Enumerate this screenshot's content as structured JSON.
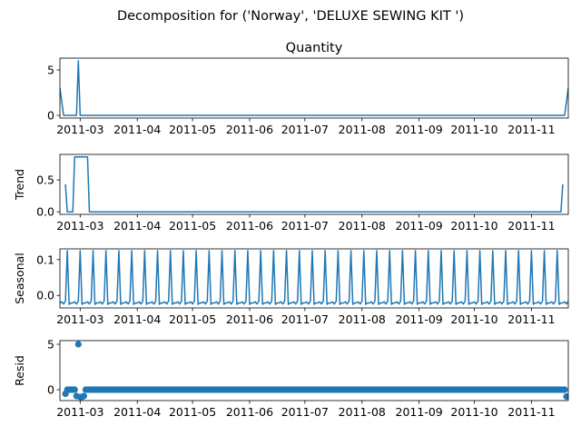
{
  "suptitle": "Decomposition for ('Norway', 'DELUXE SEWING KIT ')",
  "colors": {
    "line": "#1f77b4"
  },
  "chart_data": [
    {
      "type": "line",
      "title": "Quantity",
      "ylabel": "",
      "ylim": [
        -0.3,
        6.3
      ],
      "yticks": [
        0,
        5
      ],
      "x_range": [
        "2011-02-18",
        "2011-11-21"
      ],
      "x_ticks": [
        "2011-03",
        "2011-04",
        "2011-05",
        "2011-06",
        "2011-07",
        "2011-08",
        "2011-09",
        "2011-10",
        "2011-11"
      ],
      "series": [
        {
          "x": [
            "2011-02-18",
            "2011-02-20",
            "2011-02-27",
            "2011-02-28",
            "2011-03-01",
            "2011-03-02",
            "2011-11-19",
            "2011-11-21"
          ],
          "values": [
            3,
            0,
            0,
            6,
            0,
            0,
            0,
            3
          ]
        }
      ]
    },
    {
      "type": "line",
      "title": "",
      "ylabel": "Trend",
      "ylim": [
        -0.04,
        0.9
      ],
      "yticks": [
        0.0,
        0.5
      ],
      "x_range": [
        "2011-02-18",
        "2011-11-21"
      ],
      "x_ticks": [
        "2011-03",
        "2011-04",
        "2011-05",
        "2011-06",
        "2011-07",
        "2011-08",
        "2011-09",
        "2011-10",
        "2011-11"
      ],
      "series": [
        {
          "x": [
            "2011-02-21",
            "2011-02-22",
            "2011-02-25",
            "2011-02-26",
            "2011-03-05",
            "2011-03-06",
            "2011-11-17",
            "2011-11-18"
          ],
          "values": [
            0.43,
            0.0,
            0.0,
            0.86,
            0.86,
            0.0,
            0.0,
            0.43
          ]
        }
      ]
    },
    {
      "type": "line",
      "title": "",
      "ylabel": "Seasonal",
      "ylim": [
        -0.035,
        0.13
      ],
      "yticks": [
        0.0,
        0.1
      ],
      "x_range": [
        "2011-02-18",
        "2011-11-21"
      ],
      "x_ticks": [
        "2011-03",
        "2011-04",
        "2011-05",
        "2011-06",
        "2011-07",
        "2011-08",
        "2011-09",
        "2011-10",
        "2011-11"
      ],
      "series": [
        {
          "period_days": 7,
          "pattern": [
            -0.021,
            -0.018,
            -0.024,
            -0.016,
            0.125,
            -0.025,
            -0.021
          ],
          "x_start": "2011-02-18",
          "x_end": "2011-11-21"
        }
      ]
    },
    {
      "type": "scatter",
      "title": "",
      "ylabel": "Resid",
      "ylim": [
        -1.2,
        5.4
      ],
      "yticks": [
        0,
        5
      ],
      "x_range": [
        "2011-02-18",
        "2011-11-21"
      ],
      "x_ticks": [
        "2011-03",
        "2011-04",
        "2011-05",
        "2011-06",
        "2011-07",
        "2011-08",
        "2011-09",
        "2011-10",
        "2011-11"
      ],
      "series": [
        {
          "outliers": [
            {
              "x": "2011-02-21",
              "y": -0.45
            },
            {
              "x": "2011-02-27",
              "y": -0.7
            },
            {
              "x": "2011-02-28",
              "y": 5.0
            },
            {
              "x": "2011-03-01",
              "y": -0.8
            },
            {
              "x": "2011-03-02",
              "y": -0.8
            },
            {
              "x": "2011-03-03",
              "y": -0.7
            },
            {
              "x": "2011-11-20",
              "y": -0.75
            }
          ],
          "baseline": 0,
          "x_start": "2011-02-21",
          "x_end": "2011-11-19"
        }
      ]
    }
  ]
}
